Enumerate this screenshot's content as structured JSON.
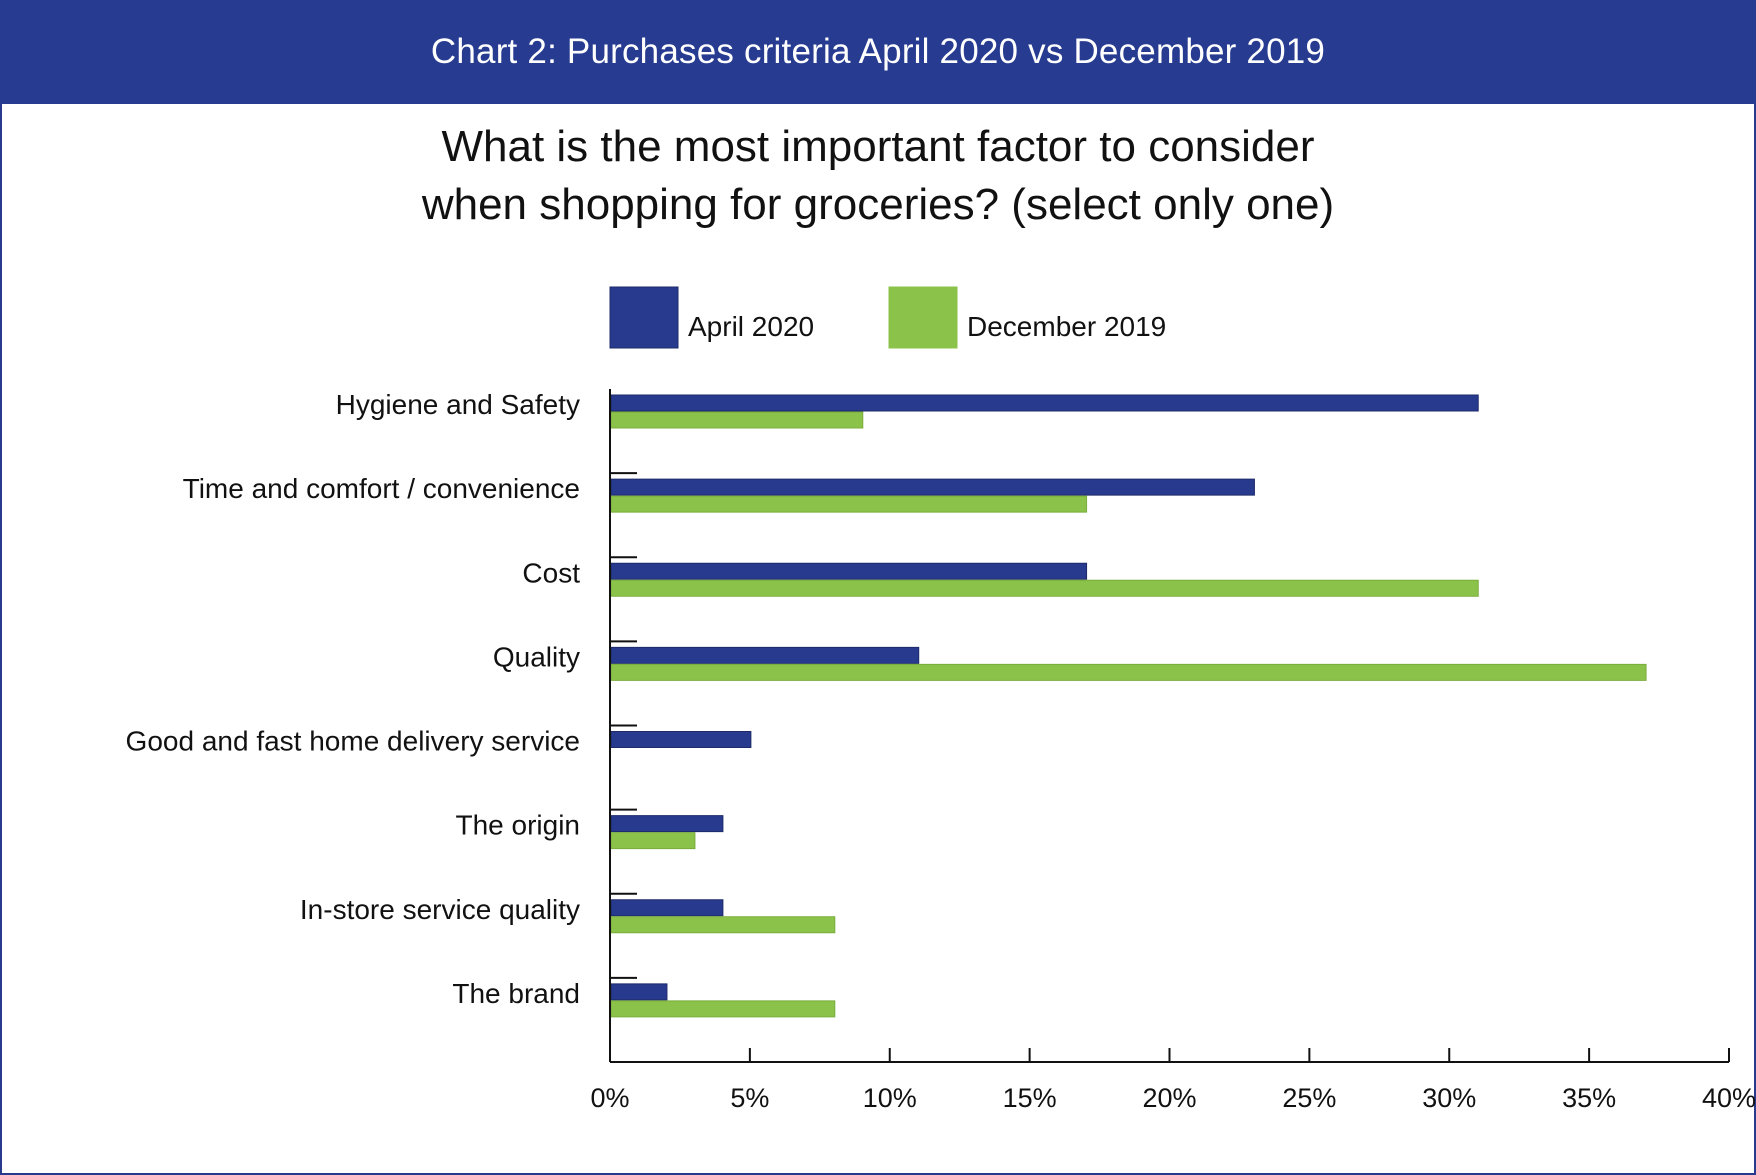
{
  "header": {
    "title": "Chart 2: Purchases criteria April 2020 vs December 2019"
  },
  "question": {
    "line1": "What is the most important factor to consider",
    "line2": "when shopping for groceries? (select only one)"
  },
  "colors": {
    "header_bg": "#273c91",
    "april": "#283a8e",
    "december": "#8bc34a"
  },
  "chart_data": {
    "type": "bar",
    "orientation": "horizontal",
    "categories": [
      "Hygiene and Safety",
      "Time and comfort / convenience",
      "Cost",
      "Quality",
      "Good and fast home delivery service",
      "The origin",
      "In-store service quality",
      "The brand"
    ],
    "series": [
      {
        "name": "April 2020",
        "color": "#283a8e",
        "values": [
          31,
          23,
          17,
          11,
          5,
          4,
          4,
          2
        ]
      },
      {
        "name": "December 2019",
        "color": "#8bc34a",
        "values": [
          9,
          17,
          31,
          37,
          0,
          3,
          8,
          8
        ]
      }
    ],
    "xlim": [
      0,
      40
    ],
    "xticks": [
      "0%",
      "5%",
      "10%",
      "15%",
      "20%",
      "25%",
      "30%",
      "35%",
      "40%"
    ],
    "xtick_values": [
      0,
      5,
      10,
      15,
      20,
      25,
      30,
      35,
      40
    ],
    "legend_position": "top",
    "grid": false
  }
}
